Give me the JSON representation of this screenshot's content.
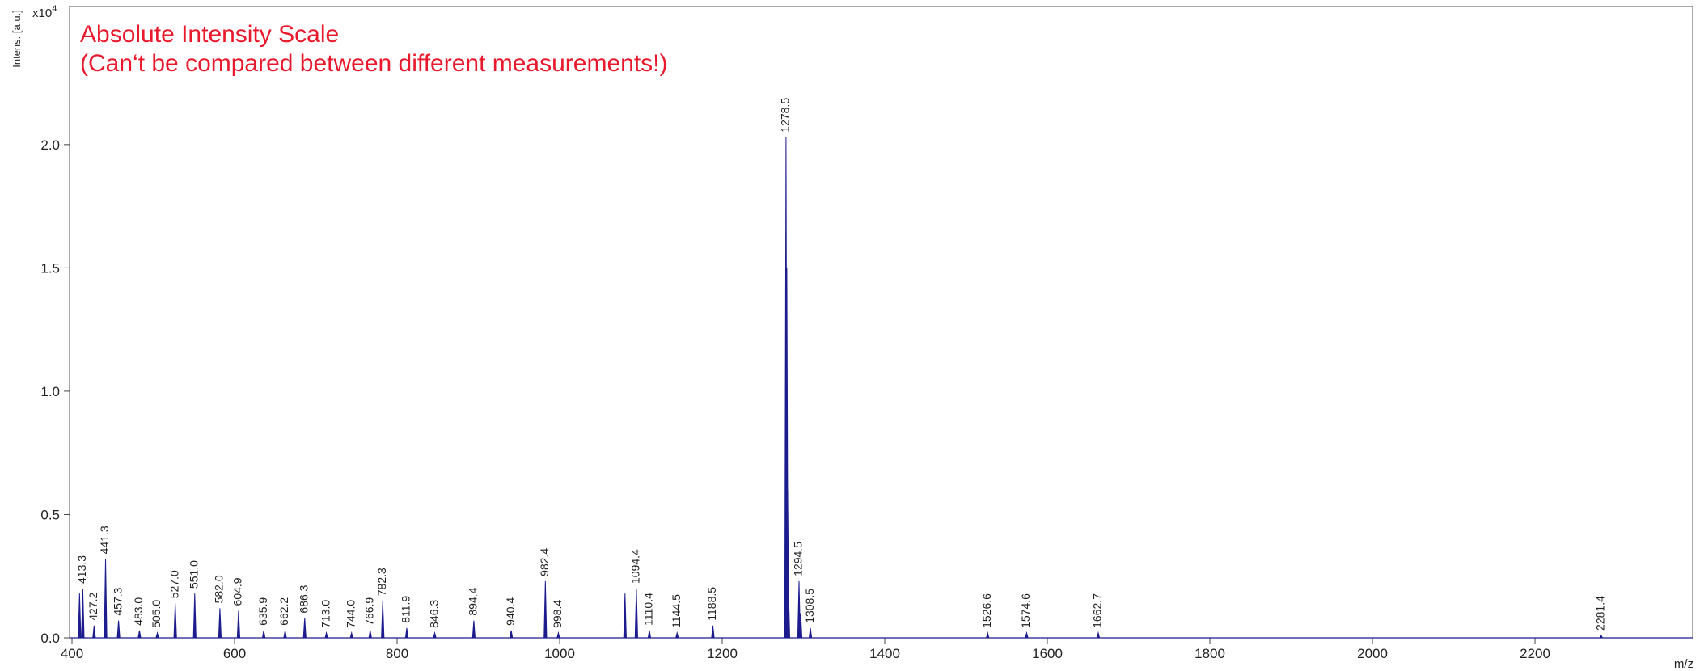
{
  "chart_data": {
    "type": "spectrum",
    "annotation": [
      "Absolute Intensity Scale",
      "(Can‘t be compared between different measurements!)"
    ],
    "x_label": "m/z",
    "y_label": "Intens. [a.u.]",
    "y_multiplier": "x10",
    "y_exponent": "4",
    "color": "#1c1c8e",
    "annotation_color": "#e8192c",
    "xlim": [
      397,
      2394
    ],
    "ylim": [
      0,
      2.56
    ],
    "xticks": [
      400,
      600,
      800,
      1000,
      1200,
      1400,
      1600,
      1800,
      2000,
      2200
    ],
    "yticks": [
      {
        "value": 0,
        "label": "0.0"
      },
      {
        "value": 0.5,
        "label": "0.5"
      },
      {
        "value": 1,
        "label": "1.0"
      },
      {
        "value": 1.5,
        "label": "1.5"
      },
      {
        "value": 2,
        "label": "2.0"
      }
    ],
    "x": [
      409.3,
      413.3,
      427.2,
      441.3,
      457.3,
      483.0,
      505.0,
      527.0,
      551.0,
      582.0,
      604.9,
      635.9,
      662.2,
      686.3,
      713.0,
      744.0,
      766.9,
      782.3,
      811.9,
      846.3,
      894.4,
      940.4,
      982.4,
      998.4,
      1080.4,
      1094.4,
      1110.4,
      1144.5,
      1188.5,
      1278.5,
      1279.5,
      1280.5,
      1281.5,
      1294.5,
      1296.5,
      1308.5,
      1526.6,
      1574.6,
      1662.7,
      2281.4
    ],
    "x_labels": [
      null,
      "413.3",
      "427.2",
      "441.3",
      "457.3",
      "483.0",
      "505.0",
      "527.0",
      "551.0",
      "582.0",
      "604.9",
      "635.9",
      "662.2",
      "686.3",
      "713.0",
      "744.0",
      "766.9",
      "782.3",
      "811.9",
      "846.3",
      "894.4",
      "940.4",
      "982.4",
      "998.4",
      null,
      "1094.4",
      "1110.4",
      "1144.5",
      "1188.5",
      "1278.5",
      null,
      null,
      null,
      "1294.5",
      null,
      "1308.5",
      "1526.6",
      "1574.6",
      "1662.7",
      "2281.4"
    ],
    "values": [
      0.18,
      0.2,
      0.05,
      0.32,
      0.07,
      0.03,
      0.02,
      0.14,
      0.18,
      0.12,
      0.11,
      0.03,
      0.03,
      0.08,
      0.02,
      0.02,
      0.03,
      0.15,
      0.04,
      0.02,
      0.07,
      0.03,
      0.23,
      0.02,
      0.18,
      0.2,
      0.03,
      0.02,
      0.05,
      2.03,
      1.5,
      0.6,
      0.2,
      0.23,
      0.1,
      0.04,
      0.02,
      0.02,
      0.02,
      0.01
    ]
  }
}
